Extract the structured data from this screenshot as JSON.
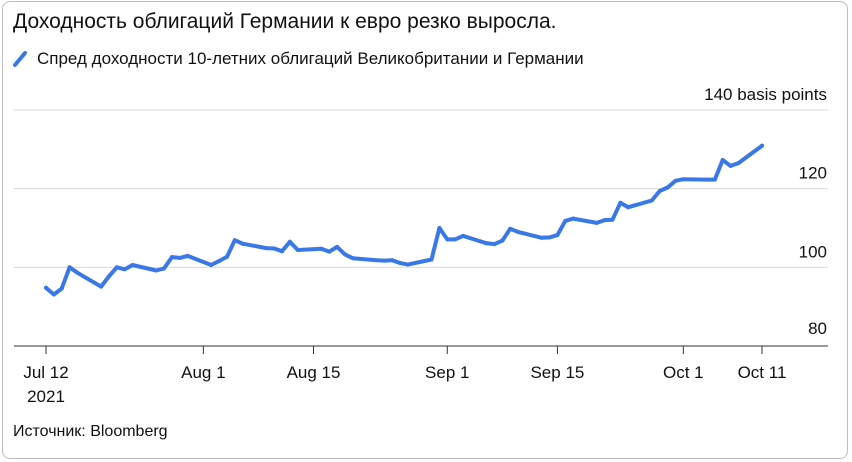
{
  "title": "Доходность облигаций Германии к евро резко выросла.",
  "legend": {
    "label": "Спред доходности 10-летних облигаций Великобритании и Германии",
    "color": "#3b78e7"
  },
  "source": "Источник: Bloomberg",
  "chart_data": {
    "type": "line",
    "title": "Доходность облигаций Германии к евро резко выросла.",
    "series": [
      {
        "name": "Спред доходности 10-летних облигаций Великобритании и Германии",
        "color": "#3b78e7",
        "x": [
          "2021-07-12",
          "2021-07-13",
          "2021-07-14",
          "2021-07-15",
          "2021-07-16",
          "2021-07-19",
          "2021-07-20",
          "2021-07-21",
          "2021-07-22",
          "2021-07-23",
          "2021-07-26",
          "2021-07-27",
          "2021-07-28",
          "2021-07-29",
          "2021-07-30",
          "2021-08-02",
          "2021-08-03",
          "2021-08-04",
          "2021-08-05",
          "2021-08-06",
          "2021-08-09",
          "2021-08-10",
          "2021-08-11",
          "2021-08-12",
          "2021-08-13",
          "2021-08-16",
          "2021-08-17",
          "2021-08-18",
          "2021-08-19",
          "2021-08-20",
          "2021-08-23",
          "2021-08-24",
          "2021-08-25",
          "2021-08-26",
          "2021-08-27",
          "2021-08-30",
          "2021-08-31",
          "2021-09-01",
          "2021-09-02",
          "2021-09-03",
          "2021-09-06",
          "2021-09-07",
          "2021-09-08",
          "2021-09-09",
          "2021-09-10",
          "2021-09-13",
          "2021-09-14",
          "2021-09-15",
          "2021-09-16",
          "2021-09-17",
          "2021-09-20",
          "2021-09-21",
          "2021-09-22",
          "2021-09-23",
          "2021-09-24",
          "2021-09-27",
          "2021-09-28",
          "2021-09-29",
          "2021-09-30",
          "2021-10-01",
          "2021-10-04",
          "2021-10-05",
          "2021-10-06",
          "2021-10-07",
          "2021-10-08",
          "2021-10-11"
        ],
        "values": [
          94.8,
          93.1,
          94.6,
          100.0,
          98.6,
          95.1,
          97.7,
          100.0,
          99.5,
          100.6,
          99.2,
          99.7,
          102.6,
          102.4,
          102.9,
          100.6,
          101.6,
          102.7,
          106.9,
          106.0,
          104.9,
          104.8,
          104.1,
          106.5,
          104.4,
          104.7,
          104.0,
          105.2,
          103.3,
          102.3,
          101.8,
          101.7,
          101.8,
          101.1,
          100.7,
          102.0,
          110.0,
          107.1,
          107.1,
          108.0,
          106.1,
          105.9,
          106.8,
          109.8,
          109.0,
          107.5,
          107.6,
          108.2,
          111.8,
          112.4,
          111.3,
          112.0,
          112.1,
          116.4,
          115.3,
          117.0,
          119.4,
          120.3,
          122.0,
          122.4,
          122.3,
          122.3,
          127.3,
          125.8,
          126.5,
          130.9
        ]
      }
    ],
    "xticks": [
      {
        "label": "Jul 12",
        "sublabel": "2021",
        "date": "2021-07-12"
      },
      {
        "label": "Aug 1",
        "sublabel": "",
        "date": "2021-08-01"
      },
      {
        "label": "Aug 15",
        "sublabel": "",
        "date": "2021-08-15"
      },
      {
        "label": "Sep 1",
        "sublabel": "",
        "date": "2021-09-01"
      },
      {
        "label": "Sep 15",
        "sublabel": "",
        "date": "2021-09-15"
      },
      {
        "label": "Oct 1",
        "sublabel": "",
        "date": "2021-10-01"
      },
      {
        "label": "Oct 11",
        "sublabel": "",
        "date": "2021-10-11"
      }
    ],
    "yticks": [
      {
        "value": 80,
        "label": "80"
      },
      {
        "value": 100,
        "label": "100"
      },
      {
        "value": 120,
        "label": "120"
      },
      {
        "value": 140,
        "label": "140 basis points"
      }
    ],
    "ylim": [
      80,
      140
    ],
    "xlim": [
      "2021-07-12",
      "2021-10-11"
    ],
    "grid": true,
    "legend_position": "top-left"
  }
}
